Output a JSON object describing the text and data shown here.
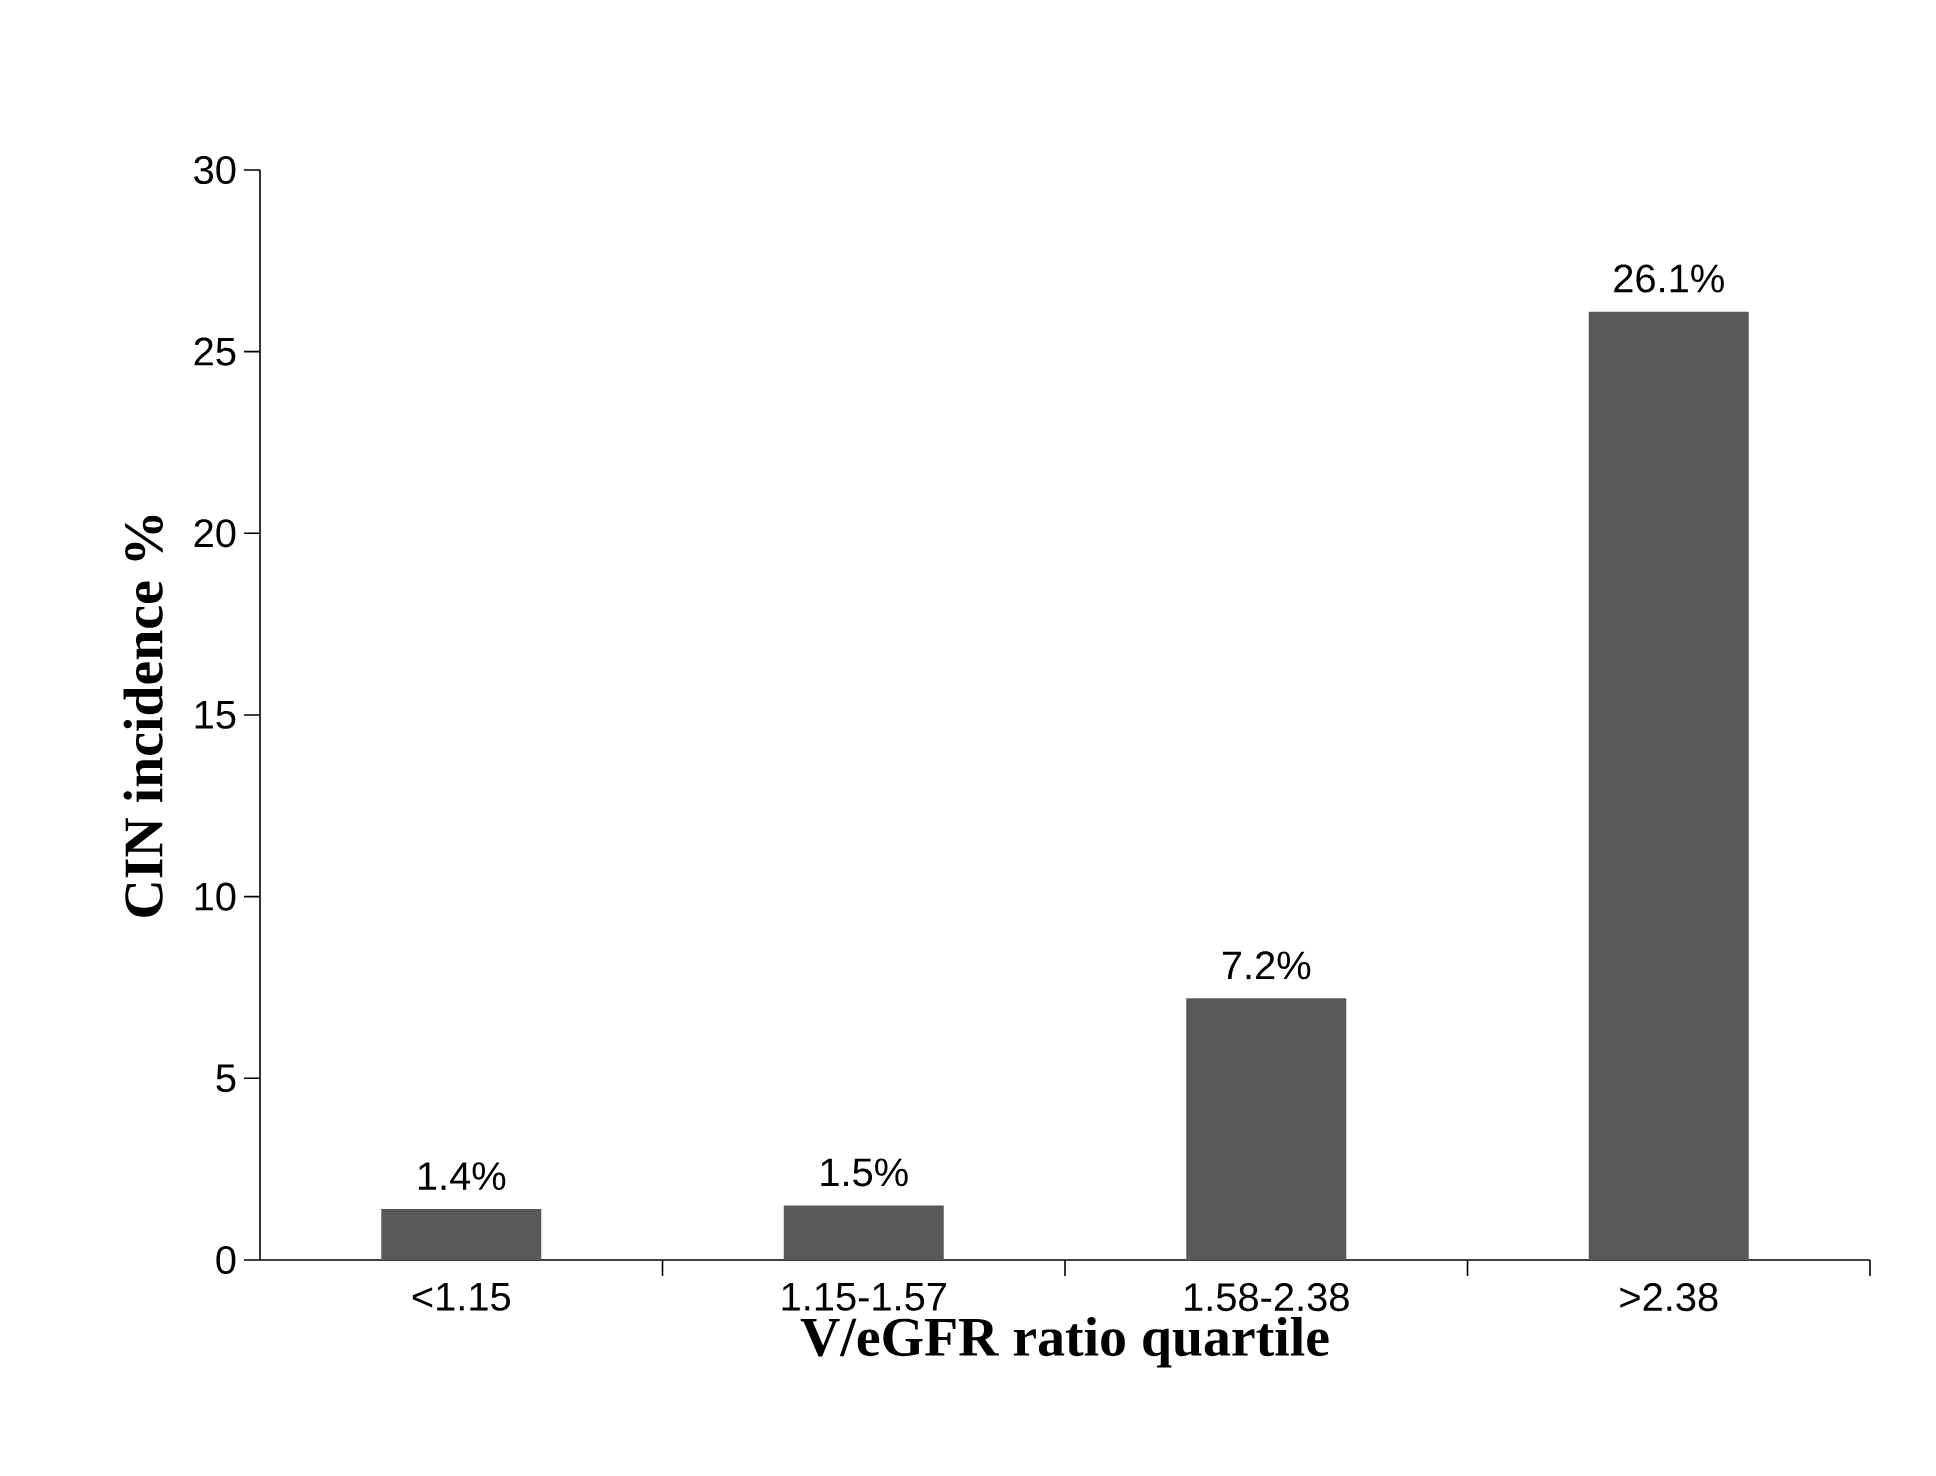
{
  "chart_data": {
    "type": "bar",
    "xlabel": "V/eGFR ratio quartile",
    "ylabel": "CIN incidence %",
    "categories": [
      "<1.15",
      "1.15-1.57",
      "1.58-2.38",
      ">2.38"
    ],
    "values": [
      1.4,
      1.5,
      7.2,
      26.1
    ],
    "value_labels": [
      "1.4%",
      "1.5%",
      "7.2%",
      "26.1%"
    ],
    "color": "#595959",
    "ylim": [
      0,
      30
    ],
    "yticks": [
      0,
      5,
      10,
      15,
      20,
      25,
      30
    ]
  }
}
